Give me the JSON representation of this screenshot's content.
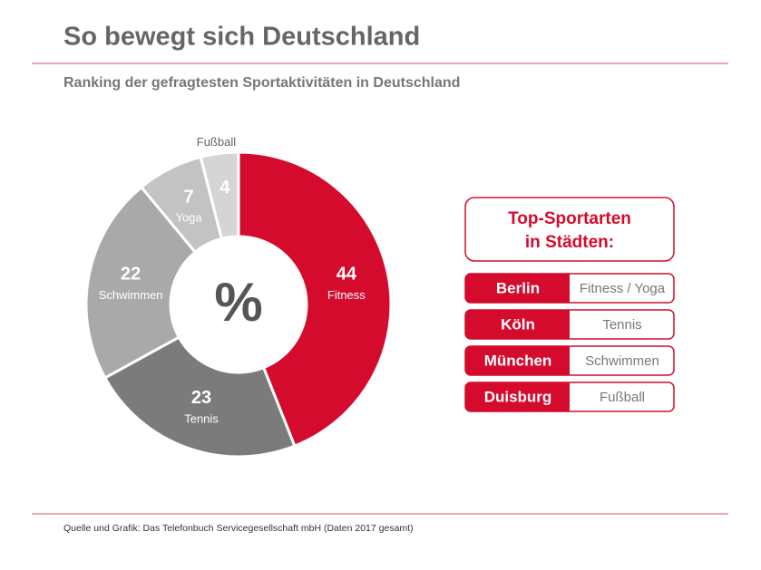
{
  "chart_data": {
    "type": "pie",
    "title": "So bewegt sich Deutschland",
    "subtitle": "Ranking der gefragtesten Sportaktivitäten in Deutschland",
    "center_label": "%",
    "categories": [
      "Fitness",
      "Tennis",
      "Schwimmen",
      "Yoga",
      "Fußball"
    ],
    "values": [
      44,
      23,
      22,
      7,
      4
    ],
    "colors": [
      "#d40b2d",
      "#7b7b7b",
      "#a9a9a9",
      "#c3c3c3",
      "#d5d5d5"
    ],
    "source": "Quelle und Grafik: Das Telefonbuch Servicegesellschaft mbH (Daten 2017 gesamt)"
  },
  "panel": {
    "title": [
      "Top-Sportarten",
      "in Städten:"
    ],
    "rows": [
      [
        "Berlin",
        "Fitness / Yoga"
      ],
      [
        "Köln",
        "Tennis"
      ],
      [
        "München",
        "Schwimmen"
      ],
      [
        "Duisburg",
        "Fußball"
      ]
    ]
  }
}
